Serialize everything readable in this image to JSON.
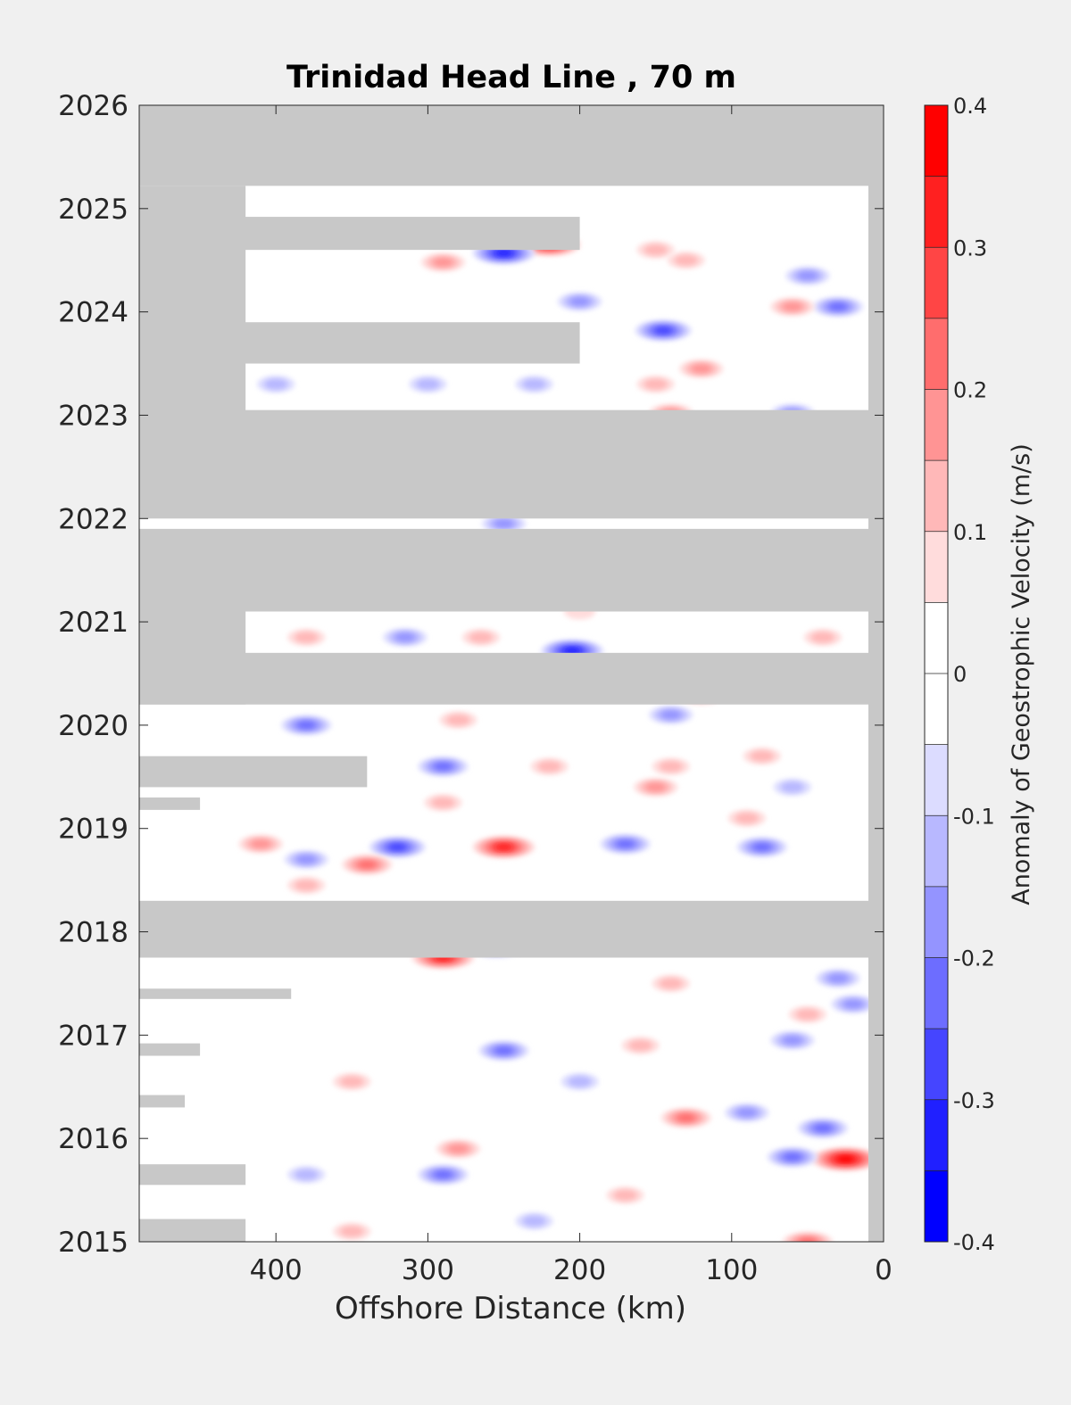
{
  "chart_data": {
    "type": "heatmap",
    "title": "Trinidad Head Line , 70 m",
    "xlabel": "Offshore Distance (km)",
    "ylabel": "",
    "xlim": [
      490,
      0
    ],
    "ylim": [
      2015,
      2026
    ],
    "x_ticks": [
      400,
      300,
      200,
      100,
      0
    ],
    "y_ticks": [
      2015,
      2016,
      2017,
      2018,
      2019,
      2020,
      2021,
      2022,
      2023,
      2024,
      2025,
      2026
    ],
    "colorbar": {
      "label": "Anomaly of Geostrophic Velocity (m/s)",
      "levels": [
        -0.4,
        -0.35,
        -0.3,
        -0.25,
        -0.2,
        -0.15,
        -0.1,
        -0.05,
        0,
        0.05,
        0.1,
        0.15,
        0.2,
        0.25,
        0.3,
        0.35,
        0.4
      ],
      "tick_values": [
        -0.4,
        -0.3,
        -0.2,
        -0.1,
        0,
        0.1,
        0.2,
        0.3,
        0.4
      ],
      "tick_labels": [
        "-0.4",
        "-0.3",
        "-0.2",
        "-0.1",
        "0",
        "0.1",
        "0.2",
        "0.3",
        "0.4"
      ],
      "colors": [
        "#0000ff",
        "#2020ff",
        "#4545ff",
        "#6d6dff",
        "#9494ff",
        "#b8b8ff",
        "#dcdcff",
        "#ffffff",
        "#ffffff",
        "#ffdcdc",
        "#ffb8b8",
        "#ff9494",
        "#ff6d6d",
        "#ff4545",
        "#ff2020",
        "#ff0000"
      ]
    },
    "no_data_color": "#c8c8c8",
    "missing_data_bands": [
      {
        "x_from": 490,
        "x_to": 0,
        "t_from": 2025.22,
        "t_to": 2026.0
      },
      {
        "x_from": 490,
        "x_to": 0,
        "t_from": 2022.0,
        "t_to": 2023.05
      },
      {
        "x_from": 490,
        "x_to": 0,
        "t_from": 2021.1,
        "t_to": 2021.9
      },
      {
        "x_from": 490,
        "x_to": 0,
        "t_from": 2020.2,
        "t_to": 2020.7
      },
      {
        "x_from": 490,
        "x_to": 0,
        "t_from": 2017.75,
        "t_to": 2018.3
      },
      {
        "x_from": 490,
        "x_to": 200,
        "t_from": 2024.6,
        "t_to": 2024.92
      },
      {
        "x_from": 490,
        "x_to": 200,
        "t_from": 2023.5,
        "t_to": 2023.9
      },
      {
        "x_from": 490,
        "x_to": 420,
        "t_from": 2023.0,
        "t_to": 2025.22
      },
      {
        "x_from": 490,
        "x_to": 420,
        "t_from": 2020.2,
        "t_to": 2021.1
      },
      {
        "x_from": 490,
        "x_to": 340,
        "t_from": 2019.4,
        "t_to": 2019.7
      },
      {
        "x_from": 490,
        "x_to": 450,
        "t_from": 2019.18,
        "t_to": 2019.3
      },
      {
        "x_from": 490,
        "x_to": 390,
        "t_from": 2017.35,
        "t_to": 2017.45
      },
      {
        "x_from": 490,
        "x_to": 450,
        "t_from": 2016.8,
        "t_to": 2016.92
      },
      {
        "x_from": 490,
        "x_to": 460,
        "t_from": 2016.3,
        "t_to": 2016.42
      },
      {
        "x_from": 490,
        "x_to": 420,
        "t_from": 2015.55,
        "t_to": 2015.75
      },
      {
        "x_from": 490,
        "x_to": 420,
        "t_from": 2015.0,
        "t_to": 2015.22
      },
      {
        "x_from": 10,
        "x_to": 0,
        "t_from": 2015.0,
        "t_to": 2026.0
      }
    ],
    "anomalies": [
      {
        "x": 220,
        "t": 2024.65,
        "v": 0.3
      },
      {
        "x": 250,
        "t": 2024.57,
        "v": -0.3
      },
      {
        "x": 290,
        "t": 2024.48,
        "v": 0.15
      },
      {
        "x": 150,
        "t": 2024.6,
        "v": 0.1
      },
      {
        "x": 130,
        "t": 2024.5,
        "v": 0.1
      },
      {
        "x": 50,
        "t": 2024.35,
        "v": -0.15
      },
      {
        "x": 30,
        "t": 2024.05,
        "v": -0.2
      },
      {
        "x": 60,
        "t": 2024.05,
        "v": 0.15
      },
      {
        "x": 200,
        "t": 2024.1,
        "v": -0.15
      },
      {
        "x": 145,
        "t": 2023.82,
        "v": -0.25
      },
      {
        "x": 120,
        "t": 2023.45,
        "v": 0.15
      },
      {
        "x": 150,
        "t": 2023.3,
        "v": 0.1
      },
      {
        "x": 300,
        "t": 2023.3,
        "v": -0.1
      },
      {
        "x": 400,
        "t": 2023.3,
        "v": -0.1
      },
      {
        "x": 230,
        "t": 2023.3,
        "v": -0.1
      },
      {
        "x": 60,
        "t": 2023.02,
        "v": -0.15
      },
      {
        "x": 140,
        "t": 2023.02,
        "v": 0.15
      },
      {
        "x": 250,
        "t": 2021.95,
        "v": -0.15
      },
      {
        "x": 200,
        "t": 2021.1,
        "v": 0.05
      },
      {
        "x": 265,
        "t": 2020.85,
        "v": 0.1
      },
      {
        "x": 205,
        "t": 2020.72,
        "v": -0.3
      },
      {
        "x": 315,
        "t": 2020.85,
        "v": -0.15
      },
      {
        "x": 380,
        "t": 2020.85,
        "v": 0.1
      },
      {
        "x": 40,
        "t": 2020.85,
        "v": 0.1
      },
      {
        "x": 120,
        "t": 2020.3,
        "v": 0.2
      },
      {
        "x": 380,
        "t": 2020.0,
        "v": -0.2
      },
      {
        "x": 280,
        "t": 2020.05,
        "v": 0.1
      },
      {
        "x": 140,
        "t": 2020.1,
        "v": -0.15
      },
      {
        "x": 290,
        "t": 2019.6,
        "v": -0.2
      },
      {
        "x": 220,
        "t": 2019.6,
        "v": 0.1
      },
      {
        "x": 140,
        "t": 2019.6,
        "v": 0.1
      },
      {
        "x": 80,
        "t": 2019.7,
        "v": 0.1
      },
      {
        "x": 150,
        "t": 2019.4,
        "v": 0.15
      },
      {
        "x": 60,
        "t": 2019.4,
        "v": -0.1
      },
      {
        "x": 290,
        "t": 2019.25,
        "v": 0.1
      },
      {
        "x": 250,
        "t": 2018.82,
        "v": 0.3
      },
      {
        "x": 320,
        "t": 2018.82,
        "v": -0.25
      },
      {
        "x": 380,
        "t": 2018.7,
        "v": -0.15
      },
      {
        "x": 410,
        "t": 2018.85,
        "v": 0.15
      },
      {
        "x": 340,
        "t": 2018.65,
        "v": 0.2
      },
      {
        "x": 170,
        "t": 2018.85,
        "v": -0.2
      },
      {
        "x": 80,
        "t": 2018.82,
        "v": -0.2
      },
      {
        "x": 90,
        "t": 2019.1,
        "v": 0.1
      },
      {
        "x": 380,
        "t": 2018.45,
        "v": 0.1
      },
      {
        "x": 290,
        "t": 2017.75,
        "v": 0.3
      },
      {
        "x": 255,
        "t": 2017.85,
        "v": -0.2
      },
      {
        "x": 30,
        "t": 2017.55,
        "v": -0.15
      },
      {
        "x": 140,
        "t": 2017.5,
        "v": 0.1
      },
      {
        "x": 50,
        "t": 2017.2,
        "v": 0.1
      },
      {
        "x": 20,
        "t": 2017.3,
        "v": -0.15
      },
      {
        "x": 250,
        "t": 2016.85,
        "v": -0.2
      },
      {
        "x": 160,
        "t": 2016.9,
        "v": 0.1
      },
      {
        "x": 60,
        "t": 2016.95,
        "v": -0.15
      },
      {
        "x": 350,
        "t": 2016.55,
        "v": 0.1
      },
      {
        "x": 200,
        "t": 2016.55,
        "v": -0.1
      },
      {
        "x": 130,
        "t": 2016.2,
        "v": 0.2
      },
      {
        "x": 90,
        "t": 2016.25,
        "v": -0.15
      },
      {
        "x": 40,
        "t": 2016.1,
        "v": -0.2
      },
      {
        "x": 25,
        "t": 2015.8,
        "v": 0.35
      },
      {
        "x": 290,
        "t": 2015.65,
        "v": -0.2
      },
      {
        "x": 280,
        "t": 2015.9,
        "v": 0.15
      },
      {
        "x": 60,
        "t": 2015.82,
        "v": -0.2
      },
      {
        "x": 380,
        "t": 2015.65,
        "v": -0.1
      },
      {
        "x": 230,
        "t": 2015.2,
        "v": -0.1
      },
      {
        "x": 50,
        "t": 2015.0,
        "v": 0.2
      },
      {
        "x": 350,
        "t": 2015.1,
        "v": 0.1
      },
      {
        "x": 170,
        "t": 2015.45,
        "v": 0.1
      }
    ]
  }
}
